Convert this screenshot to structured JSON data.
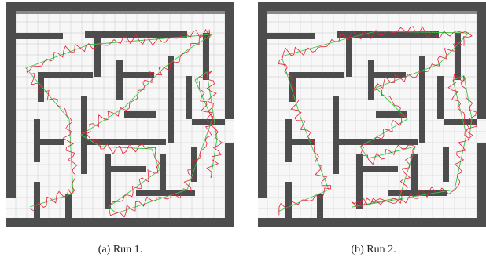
{
  "figure": {
    "subfigures": [
      {
        "caption": "(a) Run 1."
      },
      {
        "caption": "(b) Run 2."
      }
    ]
  }
}
